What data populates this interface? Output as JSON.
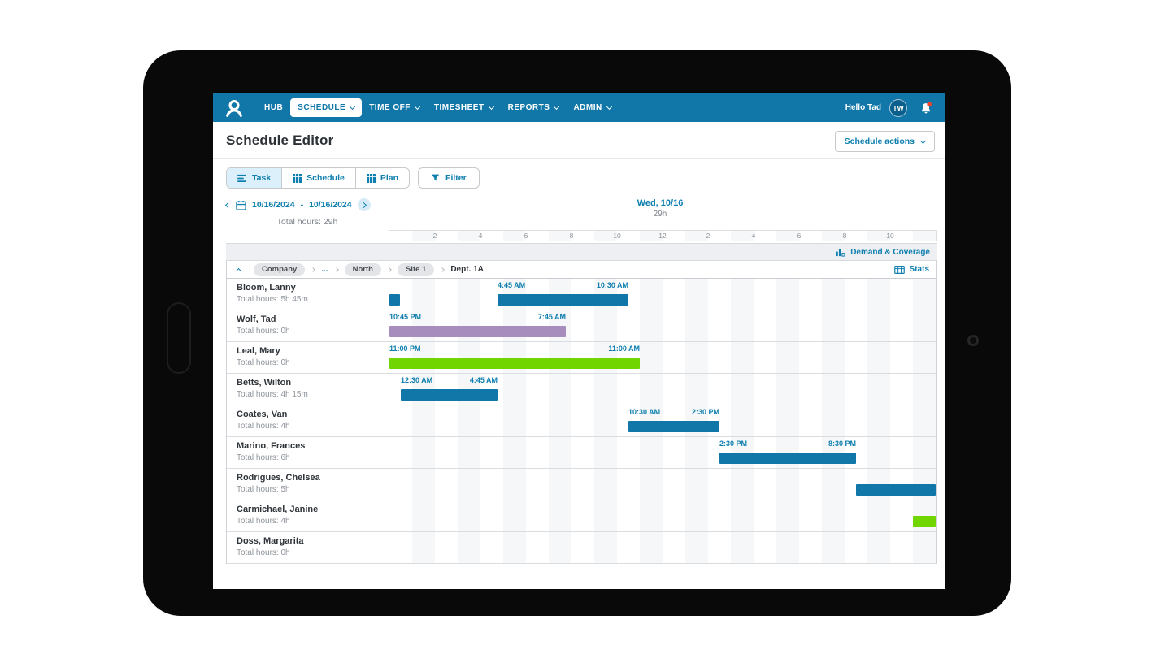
{
  "nav": {
    "items": [
      {
        "label": "HUB",
        "selected": false,
        "has_caret": false
      },
      {
        "label": "SCHEDULE",
        "selected": true,
        "has_caret": true
      },
      {
        "label": "TIME OFF",
        "selected": false,
        "has_caret": true
      },
      {
        "label": "TIMESHEET",
        "selected": false,
        "has_caret": true
      },
      {
        "label": "REPORTS",
        "selected": false,
        "has_caret": true
      },
      {
        "label": "ADMIN",
        "selected": false,
        "has_caret": true
      }
    ],
    "greeting": "Hello Tad",
    "avatar_initials": "TW"
  },
  "header": {
    "title": "Schedule Editor",
    "actions_button": "Schedule actions"
  },
  "toolbar": {
    "task_tab": "Task",
    "schedule_tab": "Schedule",
    "plan_tab": "Plan",
    "filter_button": "Filter",
    "active_tab": "Task"
  },
  "date_bar": {
    "start_date": "10/16/2024",
    "range_separator": "-",
    "end_date": "10/16/2024",
    "total_hours": "Total hours: 29h",
    "day_label": "Wed, 10/16",
    "day_total": "29h"
  },
  "timeline": {
    "hours_span": 24,
    "ticks": [
      {
        "hour": 2,
        "label": "2"
      },
      {
        "hour": 4,
        "label": "4"
      },
      {
        "hour": 6,
        "label": "6"
      },
      {
        "hour": 8,
        "label": "8"
      },
      {
        "hour": 10,
        "label": "10"
      },
      {
        "hour": 12,
        "label": "12"
      },
      {
        "hour": 14,
        "label": "2"
      },
      {
        "hour": 16,
        "label": "4"
      },
      {
        "hour": 18,
        "label": "6"
      },
      {
        "hour": 20,
        "label": "8"
      },
      {
        "hour": 22,
        "label": "10"
      }
    ]
  },
  "coverage": {
    "demand_label": "Demand & Coverage",
    "stats_label": "Stats"
  },
  "breadcrumb": {
    "items": [
      {
        "label": "Company",
        "type": "pill"
      },
      {
        "label": "...",
        "type": "link"
      },
      {
        "label": "North",
        "type": "pill"
      },
      {
        "label": "Site 1",
        "type": "pill"
      },
      {
        "label": "Dept. 1A",
        "type": "text"
      }
    ]
  },
  "schedule": {
    "rows": [
      {
        "employee": "Bloom, Lanny",
        "total": "Total hours: 5h 45m",
        "shifts": [
          {
            "start": 0,
            "end": 0.45,
            "color": "blue"
          },
          {
            "start": 4.75,
            "end": 10.5,
            "color": "blue",
            "start_label": "4:45 AM",
            "end_label": "10:30 AM"
          }
        ]
      },
      {
        "employee": "Wolf, Tad",
        "total": "Total hours: 0h",
        "shifts": [
          {
            "start": 0,
            "end": 7.75,
            "color": "purple",
            "start_label": "10:45 PM",
            "end_label": "7:45 AM"
          }
        ]
      },
      {
        "employee": "Leal, Mary",
        "total": "Total hours: 0h",
        "shifts": [
          {
            "start": 0,
            "end": 11,
            "color": "green",
            "start_label": "11:00 PM",
            "end_label": "11:00 AM"
          }
        ]
      },
      {
        "employee": "Betts, Wilton",
        "total": "Total hours: 4h 15m",
        "shifts": [
          {
            "start": 0.5,
            "end": 4.75,
            "color": "blue",
            "start_label": "12:30 AM",
            "end_label": "4:45 AM"
          }
        ]
      },
      {
        "employee": "Coates, Van",
        "total": "Total hours: 4h",
        "shifts": [
          {
            "start": 10.5,
            "end": 14.5,
            "color": "blue",
            "start_label": "10:30 AM",
            "end_label": "2:30 PM"
          }
        ]
      },
      {
        "employee": "Marino, Frances",
        "total": "Total hours: 6h",
        "shifts": [
          {
            "start": 14.5,
            "end": 20.5,
            "color": "blue",
            "start_label": "2:30 PM",
            "end_label": "8:30 PM"
          }
        ]
      },
      {
        "employee": "Rodrigues, Chelsea",
        "total": "Total hours: 5h",
        "shifts": [
          {
            "start": 20.5,
            "end": 24,
            "color": "blue"
          }
        ]
      },
      {
        "employee": "Carmichael, Janine",
        "total": "Total hours: 4h",
        "shifts": [
          {
            "start": 23,
            "end": 24,
            "color": "green"
          }
        ]
      },
      {
        "employee": "Doss, Margarita",
        "total": "Total hours: 0h",
        "shifts": []
      }
    ]
  },
  "colors": {
    "nav_blue": "#1177a8",
    "link_blue": "#0e7fae",
    "shift_blue": "#1177a8",
    "shift_purple": "#a78dbd",
    "shift_green": "#71d501",
    "notification_red": "#e8432d"
  }
}
